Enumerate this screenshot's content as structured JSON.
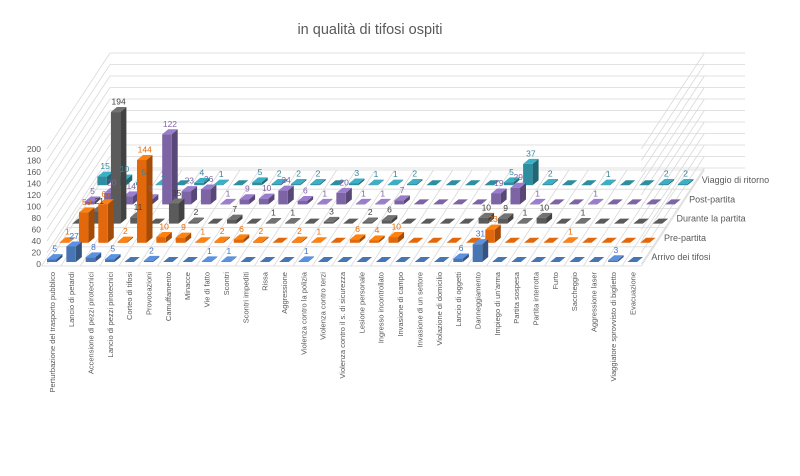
{
  "title": "in qualità di tifosi ospiti",
  "chart_data": {
    "type": "bar",
    "subtype": "3d-column",
    "title": "in qualità di tifosi ospiti",
    "grid": true,
    "legend_position": "right-depth-axis",
    "y_axis": {
      "min": 0,
      "max": 200,
      "step": 20
    },
    "categories": [
      "Perturbazione del trasporto pubblico",
      "Lancio di petardi",
      "Accensione di pezzi pirotecnici",
      "Lancio di pezzi pirotecnici",
      "Corteo di tifosi",
      "Provocazioni",
      "Camuffamento",
      "Minacce",
      "Vie di fatto",
      "Scontri",
      "Scontri impediti",
      "Rissa",
      "Aggressione",
      "Violenza contro la polizia",
      "Violenza contro terzi",
      "Violenza contro il s. di sicurezza",
      "Lesione personale",
      "Ingresso incontrollato",
      "Invasione di campo",
      "Invasione di un settore",
      "Violazione di domicilio",
      "Lancio di oggetti",
      "Danneggiamento",
      "Impiego di un'arma",
      "Partita sospesa",
      "Partita interrotta",
      "Furto",
      "Saccheggio",
      "Aggressione laser",
      "Viaggiatore sprovvisto di biglietto",
      "Evacuazione"
    ],
    "series": [
      {
        "name": "Arrivo dei tifosi",
        "color": "#4875B4",
        "label_color": "#4472C4",
        "values": [
          5,
          27,
          8,
          5,
          0,
          2,
          0,
          0,
          1,
          1,
          0,
          0,
          0,
          1,
          0,
          0,
          0,
          0,
          0,
          0,
          0,
          6,
          31,
          0,
          0,
          0,
          0,
          0,
          0,
          3,
          0
        ]
      },
      {
        "name": "Pre-partita",
        "color": "#E3680B",
        "label_color": "#E36C0A",
        "values": [
          1,
          53,
          67,
          2,
          144,
          10,
          9,
          1,
          2,
          6,
          2,
          0,
          2,
          1,
          0,
          6,
          4,
          10,
          0,
          0,
          0,
          0,
          23,
          0,
          0,
          0,
          1,
          0,
          0,
          0,
          0
        ]
      },
      {
        "name": "Durante la partita",
        "color": "#5B5B5B",
        "label_color": "#3F3F3F",
        "values": [
          0,
          21,
          194,
          11,
          0,
          35,
          2,
          0,
          7,
          0,
          1,
          1,
          0,
          3,
          0,
          2,
          6,
          0,
          0,
          0,
          0,
          10,
          9,
          1,
          10,
          0,
          1,
          0,
          0,
          0,
          0
        ]
      },
      {
        "name": "Post-partita",
        "color": "#7C64A5",
        "label_color": "#8064A2",
        "values": [
          5,
          20,
          14,
          9,
          122,
          23,
          26,
          1,
          9,
          10,
          24,
          6,
          1,
          20,
          1,
          1,
          7,
          0,
          0,
          0,
          0,
          19,
          29,
          1,
          0,
          0,
          1,
          0,
          0,
          0,
          0
        ]
      },
      {
        "name": "Viaggio di ritorno",
        "color": "#2E8D9E",
        "label_color": "#31859C",
        "values": [
          15,
          10,
          5,
          1,
          0,
          4,
          1,
          0,
          5,
          2,
          2,
          2,
          0,
          3,
          1,
          1,
          2,
          0,
          0,
          0,
          0,
          5,
          37,
          2,
          0,
          0,
          1,
          0,
          0,
          2,
          2
        ]
      }
    ],
    "grid_color": "#D9D9D9",
    "axis_text_color": "#595959"
  }
}
